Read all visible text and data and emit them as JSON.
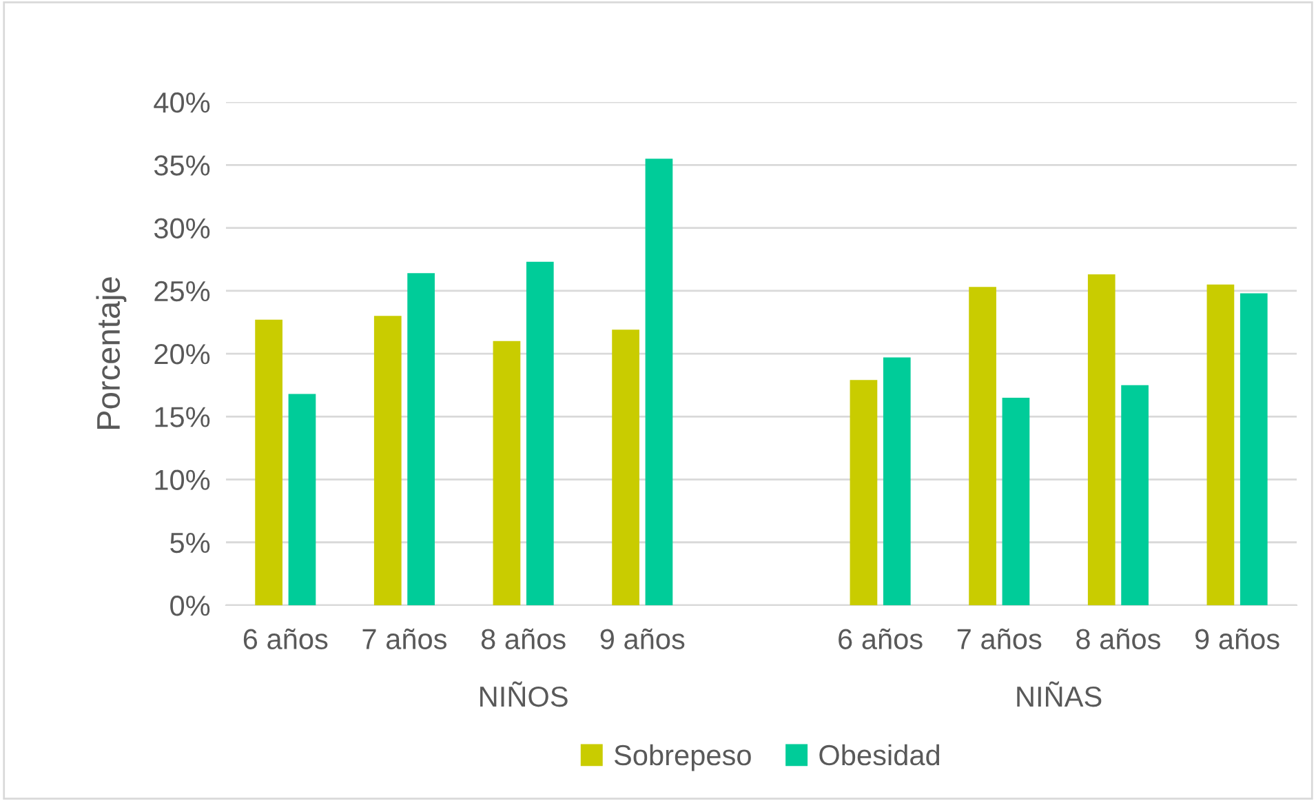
{
  "chart_data": {
    "type": "bar",
    "ylabel": "Porcentaje",
    "categories": [
      "6 años",
      "7 años",
      "8 años",
      "9 años",
      null,
      "6 años",
      "7 años",
      "8 años",
      "9 años"
    ],
    "series": [
      {
        "name": "Sobrepeso",
        "color": "#c9cc00",
        "values": [
          22.7,
          23.0,
          21.0,
          21.9,
          null,
          17.9,
          25.3,
          26.3,
          25.5
        ]
      },
      {
        "name": "Obesidad",
        "color": "#00cc99",
        "values": [
          16.8,
          26.4,
          27.3,
          35.5,
          null,
          19.7,
          16.5,
          17.5,
          24.8
        ]
      }
    ],
    "annotations": [
      "NIÑOS",
      "NIÑAS"
    ],
    "ylim": [
      0,
      40
    ],
    "yticks": [
      {
        "value": 0,
        "label": "0%"
      },
      {
        "value": 5,
        "label": "5%"
      },
      {
        "value": 10,
        "label": "10%"
      },
      {
        "value": 15,
        "label": "15%"
      },
      {
        "value": 20,
        "label": "20%"
      },
      {
        "value": 25,
        "label": "25%"
      },
      {
        "value": 30,
        "label": "30%"
      },
      {
        "value": 35,
        "label": "35%"
      },
      {
        "value": 40,
        "label": "40%"
      }
    ],
    "grid": "y",
    "legend": "bottom"
  }
}
